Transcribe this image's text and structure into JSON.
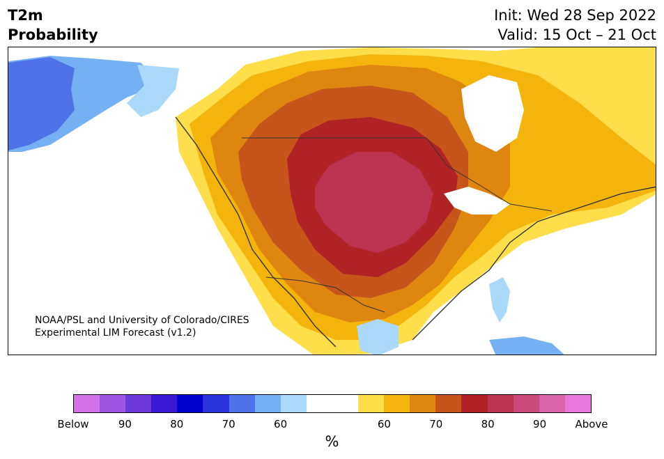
{
  "header": {
    "title_line1": "T2m",
    "title_line2": "Probability",
    "init": "Init: Wed 28 Sep 2022",
    "valid": "Valid: 15 Oct – 21 Oct"
  },
  "credit": {
    "line1": "NOAA/PSL and University of Colorado/CIRES",
    "line2": "Experimental LIM Forecast (v1.2)"
  },
  "colorbar": {
    "colors": [
      "#d473e8",
      "#9e55e3",
      "#6d39d8",
      "#3919d6",
      "#0000cd",
      "#2934dc",
      "#4f72e8",
      "#75b1f2",
      "#aad9fc",
      "#ffffff",
      "#ffffff",
      "#fede4a",
      "#f3b50c",
      "#df8611",
      "#c6541b",
      "#b12225",
      "#bd3453",
      "#ca4b79",
      "#d964a8",
      "#e878dc"
    ],
    "tick_labels": [
      "Below",
      "90",
      "80",
      "70",
      "60",
      "60",
      "70",
      "80",
      "90",
      "Above"
    ],
    "unit": "%"
  },
  "map": {
    "colors": {
      "ocean": "#ffffff",
      "cold_dark": "#4f72e8",
      "cold_mid": "#75b1f2",
      "cold_light": "#aad9fc",
      "warm_60": "#fede4a",
      "warm_65": "#f3b50c",
      "warm_70": "#df8611",
      "warm_75": "#c6541b",
      "warm_80": "#b12225",
      "warm_85": "#bd3453",
      "border": "#333333"
    }
  }
}
